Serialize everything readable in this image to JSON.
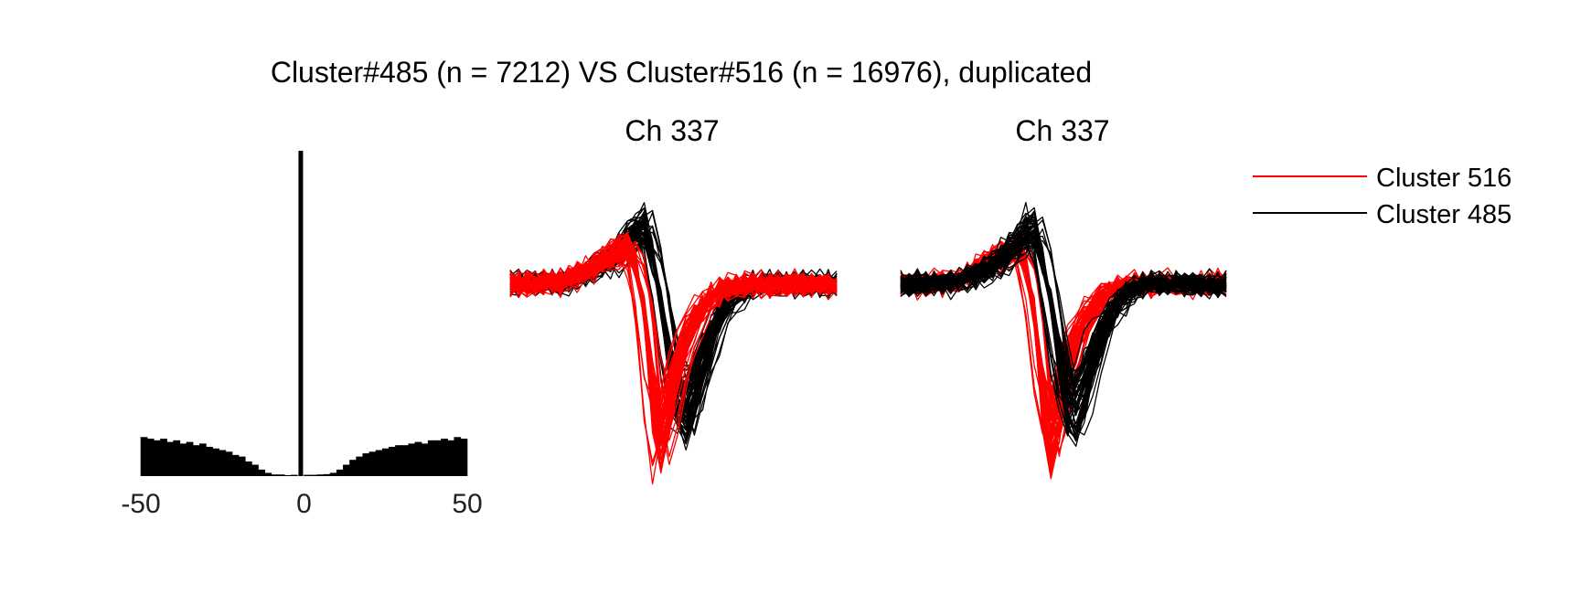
{
  "figure": {
    "title": "Cluster#485 (n = 7212) VS Cluster#516 (n = 16976), duplicated"
  },
  "colors": {
    "cluster_516": "#ff0000",
    "cluster_485": "#000000",
    "histogram": "#000000"
  },
  "legend": {
    "placement": "right",
    "entries": [
      {
        "label": "Cluster 516",
        "color": "#ff0000"
      },
      {
        "label": "Cluster 485",
        "color": "#000000"
      }
    ]
  },
  "chart_data": [
    {
      "type": "bar",
      "panel": "cross-correlogram",
      "title": "",
      "xlabel": "",
      "ylabel": "",
      "xlim": [
        -50,
        50
      ],
      "xticks": [
        "-50",
        "0",
        "50"
      ],
      "grid": false,
      "bin_centers": [
        -49,
        -47,
        -45,
        -43,
        -41,
        -39,
        -37,
        -35,
        -33,
        -31,
        -29,
        -27,
        -25,
        -23,
        -21,
        -19,
        -17,
        -15,
        -13,
        -11,
        -9,
        -7,
        -5,
        -3,
        -1,
        1,
        3,
        5,
        7,
        9,
        11,
        13,
        15,
        17,
        19,
        21,
        23,
        25,
        27,
        29,
        31,
        33,
        35,
        37,
        39,
        41,
        43,
        45,
        47,
        49
      ],
      "values": [
        0.12,
        0.115,
        0.11,
        0.115,
        0.105,
        0.11,
        0.1,
        0.105,
        0.095,
        0.1,
        0.09,
        0.085,
        0.08,
        0.075,
        0.065,
        0.06,
        0.045,
        0.035,
        0.02,
        0.01,
        0.005,
        0.005,
        0.003,
        0.004,
        1.0,
        0.004,
        0.004,
        0.005,
        0.006,
        0.01,
        0.02,
        0.035,
        0.05,
        0.06,
        0.07,
        0.075,
        0.08,
        0.085,
        0.09,
        0.095,
        0.095,
        0.1,
        0.105,
        0.1,
        0.11,
        0.11,
        0.115,
        0.11,
        0.12,
        0.115
      ]
    },
    {
      "type": "line",
      "panel": "waveform",
      "title": "Ch 337",
      "front_series": "Cluster 516",
      "series": [
        {
          "name": "Cluster 516",
          "color": "#ff0000",
          "n_traces": 60,
          "peak_sample": 18,
          "mean": [
            0,
            0,
            0.01,
            0,
            0.02,
            0.03,
            0,
            0.05,
            0.1,
            0.15,
            0.2,
            0.25,
            0.3,
            0.35,
            0.4,
            0.2,
            -0.3,
            -1.2,
            -1.6,
            -1.3,
            -0.9,
            -0.6,
            -0.4,
            -0.25,
            -0.15,
            -0.08,
            -0.04,
            -0.02,
            0,
            0.01,
            0,
            0,
            0.01,
            0,
            0,
            0,
            0,
            0,
            0,
            0
          ]
        },
        {
          "name": "Cluster 485",
          "color": "#000000",
          "n_traces": 60,
          "peak_sample": 21,
          "mean": [
            0,
            0,
            0,
            0.01,
            0.02,
            0,
            0.03,
            0.05,
            0.08,
            0.1,
            0.15,
            0.2,
            0.25,
            0.35,
            0.45,
            0.55,
            0.6,
            0.3,
            -0.2,
            -0.8,
            -1.2,
            -1.35,
            -1.1,
            -0.8,
            -0.55,
            -0.35,
            -0.2,
            -0.1,
            -0.05,
            -0.02,
            0,
            0.01,
            0,
            0,
            0.01,
            0,
            0,
            0,
            0,
            0
          ]
        }
      ]
    },
    {
      "type": "line",
      "panel": "waveform",
      "title": "Ch 337",
      "front_series": "Cluster 485",
      "series": [
        {
          "name": "Cluster 516",
          "color": "#ff0000",
          "n_traces": 60,
          "peak_sample": 18,
          "mean": [
            0,
            0,
            0.01,
            0,
            0.02,
            0.03,
            0,
            0.05,
            0.1,
            0.15,
            0.2,
            0.25,
            0.3,
            0.35,
            0.4,
            0.2,
            -0.3,
            -1.2,
            -1.6,
            -1.3,
            -0.9,
            -0.6,
            -0.4,
            -0.25,
            -0.15,
            -0.08,
            -0.04,
            -0.02,
            0,
            0.01,
            0,
            0,
            0.01,
            0,
            0,
            0,
            0,
            0,
            0,
            0
          ]
        },
        {
          "name": "Cluster 485",
          "color": "#000000",
          "n_traces": 60,
          "peak_sample": 21,
          "mean": [
            0,
            0,
            0,
            0.01,
            0.02,
            0,
            0.03,
            0.05,
            0.08,
            0.1,
            0.15,
            0.2,
            0.25,
            0.35,
            0.45,
            0.55,
            0.6,
            0.3,
            -0.2,
            -0.8,
            -1.2,
            -1.35,
            -1.1,
            -0.8,
            -0.55,
            -0.35,
            -0.2,
            -0.1,
            -0.05,
            -0.02,
            0,
            0.01,
            0,
            0,
            0.01,
            0,
            0,
            0,
            0,
            0
          ]
        }
      ]
    }
  ]
}
